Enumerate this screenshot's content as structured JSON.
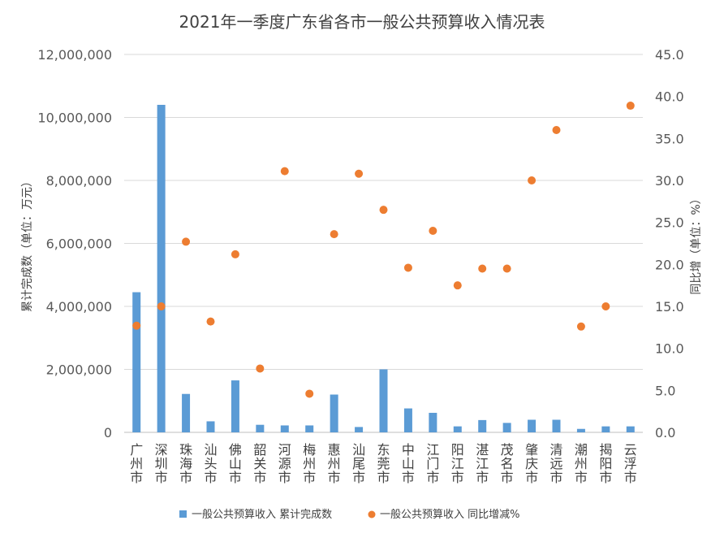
{
  "chart_data": {
    "type": "bar",
    "title": "2021年一季度广东省各市一般公共预算收入情况表",
    "ylabel_left": "累计完成数（单位：万元）",
    "ylabel_right": "同比增（单位：%）",
    "ylim_left": [
      0,
      12000000
    ],
    "ylim_right": [
      0,
      45
    ],
    "yticks_left": [
      "0",
      "2,000,000",
      "4,000,000",
      "6,000,000",
      "8,000,000",
      "10,000,000",
      "12,000,000"
    ],
    "yticks_right": [
      "0.0",
      "5.0",
      "10.0",
      "15.0",
      "20.0",
      "25.0",
      "30.0",
      "35.0",
      "40.0",
      "45.0"
    ],
    "grid": true,
    "legend_position": "bottom",
    "colors": {
      "bar": "#5B9BD5",
      "dot": "#ED7D31"
    },
    "categories": [
      "广州市",
      "深圳市",
      "珠海市",
      "汕头市",
      "佛山市",
      "韶关市",
      "河源市",
      "梅州市",
      "惠州市",
      "汕尾市",
      "东莞市",
      "中山市",
      "江门市",
      "阳江市",
      "湛江市",
      "茂名市",
      "肇庆市",
      "清远市",
      "潮州市",
      "揭阳市",
      "云浮市"
    ],
    "series": [
      {
        "name": "一般公共预算收入 累计完成数",
        "type": "bar",
        "axis": "left",
        "values": [
          4450000,
          10400000,
          1220000,
          350000,
          1650000,
          240000,
          220000,
          220000,
          1200000,
          170000,
          2000000,
          760000,
          620000,
          190000,
          390000,
          300000,
          400000,
          400000,
          110000,
          190000,
          190000
        ]
      },
      {
        "name": "一般公共预算收入 同比增减%",
        "type": "scatter",
        "axis": "right",
        "values": [
          12.7,
          15.0,
          22.7,
          13.2,
          21.2,
          7.6,
          31.1,
          4.6,
          23.6,
          30.8,
          26.5,
          19.6,
          24.0,
          17.5,
          19.5,
          19.5,
          30.0,
          36.0,
          12.6,
          15.0,
          38.9
        ]
      }
    ]
  }
}
